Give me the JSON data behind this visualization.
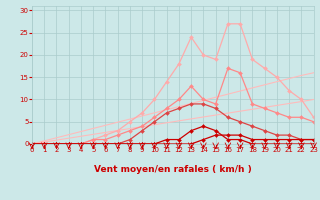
{
  "background_color": "#cce8e8",
  "grid_color": "#aacccc",
  "xlabel": "Vent moyen/en rafales ( km/h )",
  "xlabel_color": "#cc0000",
  "xlabel_fontsize": 6.5,
  "xticks": [
    0,
    1,
    2,
    3,
    4,
    5,
    6,
    7,
    8,
    9,
    10,
    11,
    12,
    13,
    14,
    15,
    16,
    17,
    18,
    19,
    20,
    21,
    22,
    23
  ],
  "yticks": [
    0,
    5,
    10,
    15,
    20,
    25,
    30
  ],
  "ylim": [
    0,
    31
  ],
  "xlim": [
    0,
    23
  ],
  "series": [
    {
      "x": [
        0,
        1,
        2,
        3,
        4,
        5,
        6,
        7,
        8,
        9,
        10,
        11,
        12,
        13,
        14,
        15,
        16,
        17,
        18,
        19,
        20,
        21,
        22,
        23
      ],
      "y": [
        0,
        0.7,
        1.4,
        2.1,
        2.8,
        3.5,
        4.2,
        4.9,
        5.6,
        6.3,
        7.0,
        7.7,
        8.4,
        9.1,
        9.8,
        10.5,
        11.2,
        11.9,
        12.6,
        13.3,
        14.0,
        14.7,
        15.4,
        16.0
      ],
      "color": "#ffbbbb",
      "linewidth": 0.8,
      "marker": null,
      "markersize": 0
    },
    {
      "x": [
        0,
        1,
        2,
        3,
        4,
        5,
        6,
        7,
        8,
        9,
        10,
        11,
        12,
        13,
        14,
        15,
        16,
        17,
        18,
        19,
        20,
        21,
        22,
        23
      ],
      "y": [
        0,
        0.43,
        0.87,
        1.3,
        1.74,
        2.17,
        2.6,
        3.04,
        3.47,
        3.9,
        4.34,
        4.77,
        5.2,
        5.64,
        6.07,
        6.5,
        6.94,
        7.37,
        7.8,
        8.24,
        8.67,
        9.1,
        9.53,
        10.0
      ],
      "color": "#ffbbbb",
      "linewidth": 0.8,
      "marker": null,
      "markersize": 0
    },
    {
      "x": [
        0,
        1,
        2,
        3,
        4,
        5,
        6,
        7,
        8,
        9,
        10,
        11,
        12,
        13,
        14,
        15,
        16,
        17,
        18,
        19,
        20,
        21,
        22,
        23
      ],
      "y": [
        0,
        0,
        0,
        0,
        0,
        1,
        2,
        3,
        5,
        7,
        10,
        14,
        18,
        24,
        20,
        19,
        27,
        27,
        19,
        17,
        15,
        12,
        10,
        6
      ],
      "color": "#ffaaaa",
      "linewidth": 0.9,
      "marker": "D",
      "markersize": 2.0
    },
    {
      "x": [
        0,
        1,
        2,
        3,
        4,
        5,
        6,
        7,
        8,
        9,
        10,
        11,
        12,
        13,
        14,
        15,
        16,
        17,
        18,
        19,
        20,
        21,
        22,
        23
      ],
      "y": [
        0,
        0,
        0,
        0,
        0,
        1,
        1,
        2,
        3,
        4,
        6,
        8,
        10,
        13,
        10,
        9,
        17,
        16,
        9,
        8,
        7,
        6,
        6,
        5
      ],
      "color": "#ff8888",
      "linewidth": 0.9,
      "marker": "D",
      "markersize": 2.0
    },
    {
      "x": [
        0,
        1,
        2,
        3,
        4,
        5,
        6,
        7,
        8,
        9,
        10,
        11,
        12,
        13,
        14,
        15,
        16,
        17,
        18,
        19,
        20,
        21,
        22,
        23
      ],
      "y": [
        0,
        0,
        0,
        0,
        0,
        0,
        0,
        0,
        1,
        3,
        5,
        7,
        8,
        9,
        9,
        8,
        6,
        5,
        4,
        3,
        2,
        2,
        1,
        1
      ],
      "color": "#dd4444",
      "linewidth": 0.9,
      "marker": "D",
      "markersize": 2.0
    },
    {
      "x": [
        0,
        1,
        2,
        3,
        4,
        5,
        6,
        7,
        8,
        9,
        10,
        11,
        12,
        13,
        14,
        15,
        16,
        17,
        18,
        19,
        20,
        21,
        22,
        23
      ],
      "y": [
        0,
        0,
        0,
        0,
        0,
        0,
        0,
        0,
        0,
        0,
        0,
        1,
        1,
        3,
        4,
        3,
        1,
        1,
        0,
        0,
        0,
        0,
        0,
        0
      ],
      "color": "#cc0000",
      "linewidth": 0.9,
      "marker": "D",
      "markersize": 2.0
    },
    {
      "x": [
        0,
        1,
        2,
        3,
        4,
        5,
        6,
        7,
        8,
        9,
        10,
        11,
        12,
        13,
        14,
        15,
        16,
        17,
        18,
        19,
        20,
        21,
        22,
        23
      ],
      "y": [
        0,
        0,
        0,
        0,
        0,
        0,
        0,
        0,
        0,
        0,
        0,
        0,
        0,
        0,
        1,
        2,
        2,
        2,
        1,
        1,
        1,
        1,
        1,
        1
      ],
      "color": "#cc0000",
      "linewidth": 0.9,
      "marker": "D",
      "markersize": 2.0
    }
  ],
  "arrow_color": "#cc0000",
  "tick_color": "#cc0000"
}
